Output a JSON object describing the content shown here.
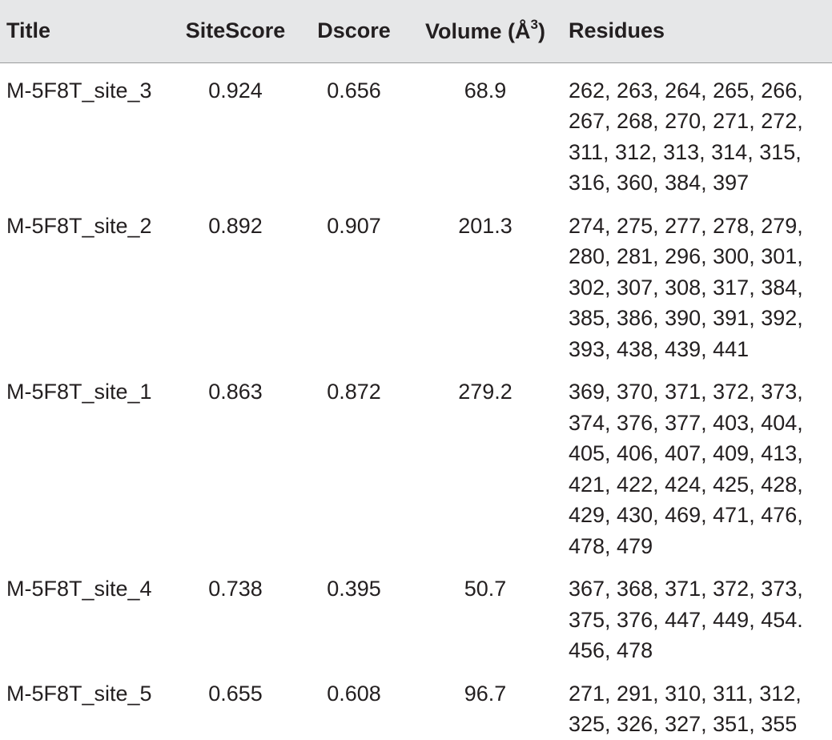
{
  "table": {
    "headers": {
      "title": "Title",
      "sitescore": "SiteScore",
      "dscore": "Dscore",
      "volume": "Volume (Å",
      "volume_sup": "3",
      "volume_close": ")",
      "residues": "Residues"
    },
    "rows": [
      {
        "title": "M-5F8T_site_3",
        "sitescore": "0.924",
        "dscore": "0.656",
        "volume": "68.9",
        "residues": "262, 263, 264, 265, 266, 267, 268, 270, 271, 272, 311, 312, 313, 314, 315, 316, 360, 384, 397"
      },
      {
        "title": "M-5F8T_site_2",
        "sitescore": "0.892",
        "dscore": "0.907",
        "volume": "201.3",
        "residues": "274, 275, 277, 278, 279, 280, 281, 296, 300, 301, 302, 307, 308, 317, 384, 385, 386, 390, 391, 392, 393, 438, 439, 441"
      },
      {
        "title": "M-5F8T_site_1",
        "sitescore": "0.863",
        "dscore": "0.872",
        "volume": "279.2",
        "residues": "369, 370, 371, 372, 373, 374, 376, 377, 403, 404, 405, 406, 407, 409, 413, 421, 422, 424, 425, 428, 429, 430, 469, 471, 476, 478, 479"
      },
      {
        "title": "M-5F8T_site_4",
        "sitescore": "0.738",
        "dscore": "0.395",
        "volume": "50.7",
        "residues": "367, 368, 371, 372, 373, 375, 376, 447, 449, 454. 456, 478"
      },
      {
        "title": "M-5F8T_site_5",
        "sitescore": "0.655",
        "dscore": "0.608",
        "volume": "96.7",
        "residues": "271, 291, 310, 311, 312, 325, 326, 327, 351, 355"
      }
    ]
  }
}
